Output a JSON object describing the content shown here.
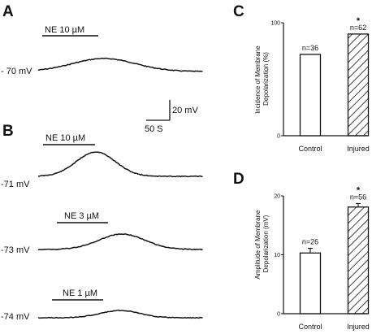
{
  "panels": {
    "A": {
      "letter": "A",
      "drug_label": "NE 10 µM",
      "potential_label": "- 70 mV"
    },
    "scale_bar": {
      "time_label": "50 S",
      "voltage_label": "20 mV"
    },
    "B": {
      "letter": "B",
      "traces": [
        {
          "drug_label": "NE 10 µM",
          "potential_label": "-71 mV"
        },
        {
          "drug_label": "NE 3 µM",
          "potential_label": "-73 mV"
        },
        {
          "drug_label": "NE 1 µM",
          "potential_label": "-74 mV"
        }
      ]
    },
    "C": {
      "letter": "C"
    },
    "D": {
      "letter": "D"
    }
  },
  "chart_data": [
    {
      "type": "bar",
      "panel": "C",
      "categories": [
        "Control",
        "Injured"
      ],
      "values": [
        72,
        90
      ],
      "annotations": [
        "n=36",
        "n=62"
      ],
      "significance": [
        "",
        "*"
      ],
      "ylabel": "Incidence of Membrane Depolarization (%)",
      "ylabel_lines": [
        "Incidence of Membrane",
        "Depolarization (%)"
      ],
      "ylim": [
        0,
        100
      ],
      "yticks": [
        0,
        100
      ],
      "fills": [
        "open",
        "hatched"
      ]
    },
    {
      "type": "bar",
      "panel": "D",
      "categories": [
        "Control",
        "Injured"
      ],
      "values": [
        10.3,
        18.1
      ],
      "errors": [
        0.8,
        0.6
      ],
      "annotations": [
        "n=26",
        "n=56"
      ],
      "significance": [
        "",
        "*"
      ],
      "ylabel": "Amplitude of Membrane Depolarization (mV)",
      "ylabel_lines": [
        "Amplitude of Membrane",
        "Depolarization (mV)"
      ],
      "ylim": [
        0,
        20
      ],
      "yticks": [
        0,
        10,
        20
      ],
      "fills": [
        "open",
        "hatched"
      ]
    }
  ]
}
